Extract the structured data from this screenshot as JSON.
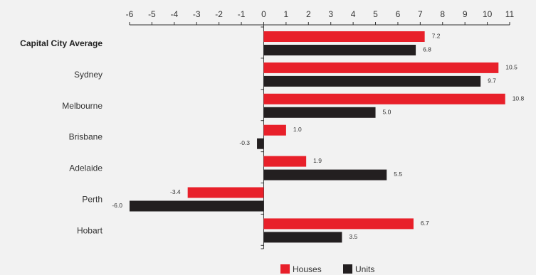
{
  "chart_data": {
    "type": "bar",
    "orientation": "horizontal",
    "categories": [
      "Capital City Average",
      "Sydney",
      "Melbourne",
      "Brisbane",
      "Adelaide",
      "Perth",
      "Hobart"
    ],
    "emphasized_category": "Capital City Average",
    "series": [
      {
        "name": "Houses",
        "color": "#e8202a",
        "values": [
          7.2,
          10.5,
          10.8,
          1.0,
          1.9,
          -3.4,
          6.7
        ],
        "labels": [
          "7.2",
          "10.5",
          "10.8",
          "1.0",
          "1.9",
          "-3.4",
          "6.7"
        ]
      },
      {
        "name": "Units",
        "color": "#231f20",
        "values": [
          6.8,
          9.7,
          5.0,
          -0.3,
          5.5,
          -6.0,
          3.5
        ],
        "labels": [
          "6.8",
          "9.7",
          "5.0",
          "-0.3",
          "5.5",
          "-6.0",
          "3.5"
        ]
      }
    ],
    "xlim": [
      -6,
      11
    ],
    "xticks": [
      "-6",
      "-5",
      "-4",
      "-3",
      "-2",
      "-1",
      "0",
      "1",
      "2",
      "3",
      "4",
      "5",
      "6",
      "7",
      "8",
      "9",
      "10",
      "11"
    ],
    "xaxis_position": "top",
    "title": "",
    "xlabel": "",
    "ylabel": "",
    "grid": false,
    "legend_position": "bottom-center"
  }
}
